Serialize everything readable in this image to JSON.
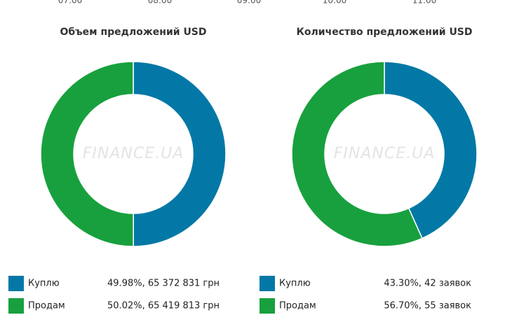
{
  "top_axis_labels": [
    "07:00",
    "08:00",
    "09:00",
    "10:00",
    "11:00"
  ],
  "chart_data": [
    {
      "type": "pie",
      "title": "Объем предложений USD",
      "watermark": "FINANCE.UA",
      "categories": [
        "Куплю",
        "Продам"
      ],
      "values": [
        49.98,
        50.02
      ],
      "value_labels": [
        "49.98%, 65 372 831 грн",
        "50.02%, 65 419 813 грн"
      ],
      "colors": [
        "#0378a6",
        "#18a03e"
      ]
    },
    {
      "type": "pie",
      "title": "Количество предложений USD",
      "watermark": "FINANCE.UA",
      "categories": [
        "Куплю",
        "Продам"
      ],
      "values": [
        43.3,
        56.7
      ],
      "value_labels": [
        "43.30%, 42 заявок",
        "56.70%, 55 заявок"
      ],
      "colors": [
        "#0378a6",
        "#18a03e"
      ]
    }
  ]
}
